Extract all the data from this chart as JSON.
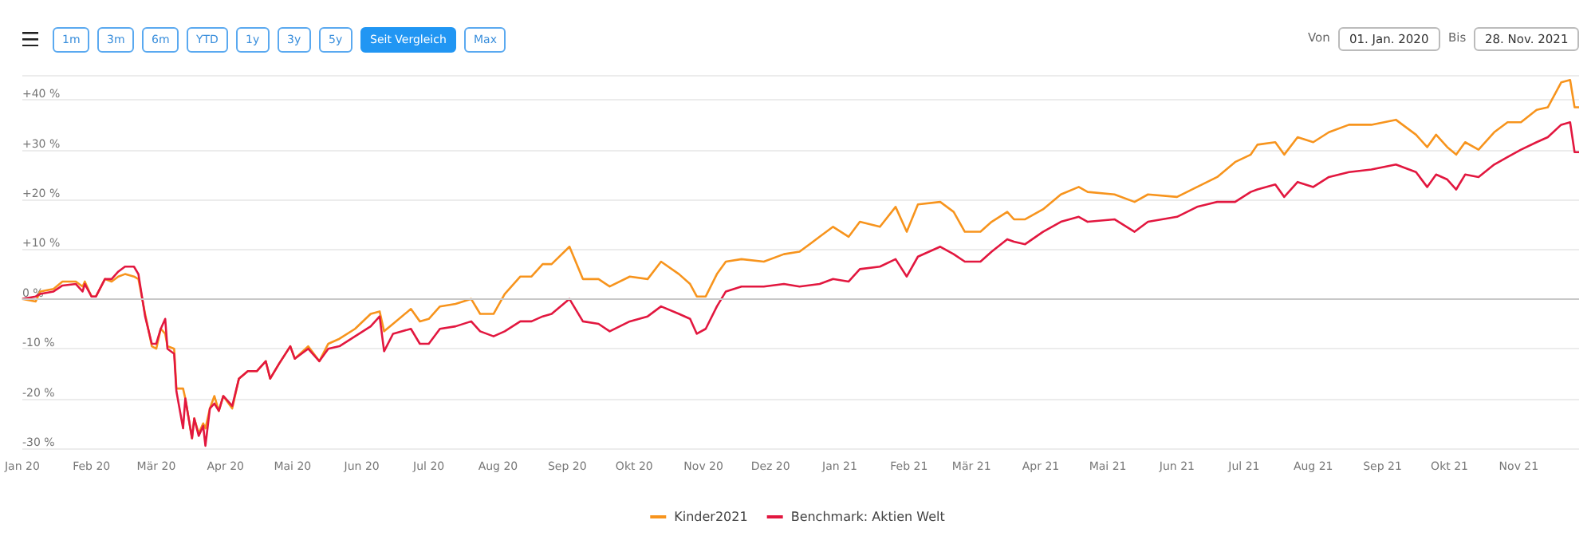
{
  "chart_data": {
    "type": "line",
    "annotations": [
      "1m",
      "3m",
      "6m",
      "YTD",
      "1y",
      "3y",
      "5y",
      "Seit Vergleich",
      "Max",
      "Von",
      "01. Jan. 2020",
      "Bis",
      "28. Nov. 2021"
    ],
    "x": [
      "2020-01-01",
      "2020-01-07",
      "2020-01-09",
      "2020-01-15",
      "2020-01-19",
      "2020-01-25",
      "2020-01-28",
      "2020-01-29",
      "2020-02-01",
      "2020-02-03",
      "2020-02-07",
      "2020-02-10",
      "2020-02-13",
      "2020-02-16",
      "2020-02-20",
      "2020-02-22",
      "2020-02-25",
      "2020-02-28",
      "2020-03-01",
      "2020-03-03",
      "2020-03-05",
      "2020-03-06",
      "2020-03-09",
      "2020-03-10",
      "2020-03-13",
      "2020-03-14",
      "2020-03-17",
      "2020-03-18",
      "2020-03-20",
      "2020-03-22",
      "2020-03-23",
      "2020-03-25",
      "2020-03-27",
      "2020-03-29",
      "2020-03-31",
      "2020-04-04",
      "2020-04-07",
      "2020-04-11",
      "2020-04-15",
      "2020-04-19",
      "2020-04-21",
      "2020-04-25",
      "2020-04-30",
      "2020-05-02",
      "2020-05-08",
      "2020-05-13",
      "2020-05-17",
      "2020-05-22",
      "2020-05-29",
      "2020-06-05",
      "2020-06-09",
      "2020-06-11",
      "2020-06-15",
      "2020-06-23",
      "2020-06-27",
      "2020-07-01",
      "2020-07-06",
      "2020-07-13",
      "2020-07-20",
      "2020-07-24",
      "2020-07-30",
      "2020-08-04",
      "2020-08-11",
      "2020-08-16",
      "2020-08-21",
      "2020-08-25",
      "2020-09-02",
      "2020-09-08",
      "2020-09-15",
      "2020-09-20",
      "2020-09-29",
      "2020-10-07",
      "2020-10-13",
      "2020-10-21",
      "2020-10-26",
      "2020-10-29",
      "2020-11-02",
      "2020-11-07",
      "2020-11-11",
      "2020-11-18",
      "2020-11-28",
      "2020-12-07",
      "2020-12-14",
      "2020-12-23",
      "2020-12-29",
      "2021-01-05",
      "2021-01-10",
      "2021-01-19",
      "2021-01-26",
      "2021-01-31",
      "2021-02-05",
      "2021-02-15",
      "2021-02-21",
      "2021-02-26",
      "2021-03-05",
      "2021-03-10",
      "2021-03-17",
      "2021-03-20",
      "2021-03-25",
      "2021-04-02",
      "2021-04-10",
      "2021-04-18",
      "2021-04-22",
      "2021-05-04",
      "2021-05-13",
      "2021-05-19",
      "2021-06-01",
      "2021-06-10",
      "2021-06-19",
      "2021-06-27",
      "2021-07-04",
      "2021-07-07",
      "2021-07-15",
      "2021-07-19",
      "2021-07-25",
      "2021-08-01",
      "2021-08-08",
      "2021-08-17",
      "2021-08-27",
      "2021-09-07",
      "2021-09-16",
      "2021-09-21",
      "2021-09-25",
      "2021-09-30",
      "2021-10-04",
      "2021-10-08",
      "2021-10-14",
      "2021-10-21",
      "2021-10-27",
      "2021-11-02",
      "2021-11-09",
      "2021-11-14",
      "2021-11-20",
      "2021-11-24",
      "2021-11-26",
      "2021-11-28"
    ],
    "series": [
      {
        "name": "Kinder2021",
        "color": "#f7941d",
        "values": [
          0,
          -0.5,
          1.5,
          2,
          3.5,
          3.5,
          2.5,
          3.5,
          0.5,
          0.5,
          4,
          3.5,
          4.5,
          5,
          4.5,
          4,
          -3,
          -9.5,
          -10,
          -6,
          -7,
          -9.5,
          -10,
          -18,
          -18,
          -20,
          -28,
          -24,
          -27,
          -25,
          -26,
          -22,
          -19.5,
          -22.5,
          -19.5,
          -22,
          -16,
          -14.5,
          -14.5,
          -12.5,
          -16,
          -13,
          -9.5,
          -12,
          -9.5,
          -12.5,
          -9,
          -8,
          -6,
          -3,
          -2.5,
          -6.5,
          -5,
          -2,
          -4.5,
          -4,
          -1.5,
          -1,
          0,
          -3,
          -3,
          1,
          4.5,
          4.5,
          7,
          7,
          10.5,
          4,
          4,
          2.5,
          4.5,
          4,
          7.5,
          5,
          3,
          0.5,
          0.5,
          5,
          7.5,
          8,
          7.5,
          9,
          9.5,
          12.5,
          14.5,
          12.5,
          15.5,
          14.5,
          18.5,
          13.5,
          19,
          19.5,
          17.5,
          13.5,
          13.5,
          15.5,
          17.5,
          16,
          16,
          18,
          21,
          22.5,
          21.5,
          21,
          19.5,
          21,
          20.5,
          22.5,
          24.5,
          27.5,
          29,
          31,
          31.5,
          29,
          32.5,
          31.5,
          33.5,
          35,
          35,
          36,
          33,
          30.5,
          33,
          30.5,
          29,
          31.5,
          30,
          33.5,
          35.5,
          35.5,
          38,
          38.5,
          43.5,
          44,
          38.5,
          38.5
        ]
      },
      {
        "name": "Benchmark: Aktien Welt",
        "color": "#e2173f",
        "values": [
          0,
          0.5,
          1,
          1.5,
          2.7,
          3,
          1.5,
          3,
          0.5,
          0.5,
          4,
          4,
          5.5,
          6.5,
          6.5,
          5,
          -3.5,
          -9,
          -9,
          -6,
          -4,
          -10,
          -11,
          -18.5,
          -26,
          -20,
          -28,
          -24,
          -27.5,
          -25.5,
          -29.5,
          -22,
          -21,
          -22.5,
          -19.5,
          -21.5,
          -16,
          -14.5,
          -14.5,
          -12.5,
          -16,
          -13,
          -9.5,
          -12,
          -10,
          -12.5,
          -10,
          -9.5,
          -7.5,
          -5.5,
          -3.5,
          -10.5,
          -7,
          -6,
          -9,
          -9,
          -6,
          -5.5,
          -4.5,
          -6.5,
          -7.5,
          -6.5,
          -4.5,
          -4.5,
          -3.5,
          -3,
          0,
          -4.5,
          -5,
          -6.5,
          -4.5,
          -3.5,
          -1.5,
          -3,
          -4,
          -7,
          -6,
          -1.5,
          1.5,
          2.5,
          2.5,
          3,
          2.5,
          3,
          4,
          3.5,
          6,
          6.5,
          8,
          4.5,
          8.5,
          10.5,
          9,
          7.5,
          7.5,
          9.5,
          12,
          11.5,
          11,
          13.5,
          15.5,
          16.5,
          15.5,
          16,
          13.5,
          15.5,
          16.5,
          18.5,
          19.5,
          19.5,
          21.5,
          22,
          23,
          20.5,
          23.5,
          22.5,
          24.5,
          25.5,
          26,
          27,
          25.5,
          22.5,
          25,
          24,
          22,
          25,
          24.5,
          27,
          28.5,
          30,
          31.5,
          32.5,
          35,
          35.5,
          29.5,
          29.5
        ]
      }
    ],
    "xlim": [
      "2020-01-01",
      "2021-11-28"
    ],
    "xticks": [
      {
        "value": "2020-01-01",
        "label": "Jan 20"
      },
      {
        "value": "2020-02-01",
        "label": "Feb 20"
      },
      {
        "value": "2020-03-01",
        "label": "Mär 20"
      },
      {
        "value": "2020-04-01",
        "label": "Apr 20"
      },
      {
        "value": "2020-05-01",
        "label": "Mai 20"
      },
      {
        "value": "2020-06-01",
        "label": "Jun 20"
      },
      {
        "value": "2020-07-01",
        "label": "Jul 20"
      },
      {
        "value": "2020-08-01",
        "label": "Aug 20"
      },
      {
        "value": "2020-09-01",
        "label": "Sep 20"
      },
      {
        "value": "2020-10-01",
        "label": "Okt 20"
      },
      {
        "value": "2020-11-01",
        "label": "Nov 20"
      },
      {
        "value": "2020-12-01",
        "label": "Dez 20"
      },
      {
        "value": "2021-01-01",
        "label": "Jan 21"
      },
      {
        "value": "2021-02-01",
        "label": "Feb 21"
      },
      {
        "value": "2021-03-01",
        "label": "Mär 21"
      },
      {
        "value": "2021-04-01",
        "label": "Apr 21"
      },
      {
        "value": "2021-05-01",
        "label": "Mai 21"
      },
      {
        "value": "2021-06-01",
        "label": "Jun 21"
      },
      {
        "value": "2021-07-01",
        "label": "Jul 21"
      },
      {
        "value": "2021-08-01",
        "label": "Aug 21"
      },
      {
        "value": "2021-09-01",
        "label": "Sep 21"
      },
      {
        "value": "2021-10-01",
        "label": "Okt 21"
      },
      {
        "value": "2021-11-01",
        "label": "Nov 21"
      }
    ],
    "ylim": [
      -30,
      45
    ],
    "yticks": [
      {
        "value": -30,
        "label": "-30 %"
      },
      {
        "value": -20,
        "label": "-20 %"
      },
      {
        "value": -10,
        "label": "-10 %"
      },
      {
        "value": 0,
        "label": "0 %"
      },
      {
        "value": 10,
        "label": "+10 %"
      },
      {
        "value": 20,
        "label": "+20 %"
      },
      {
        "value": 30,
        "label": "+30 %"
      },
      {
        "value": 40,
        "label": "+40 %"
      }
    ],
    "ref_lines": [
      {
        "axis": "y",
        "value": 0,
        "color": "#c8c8c8"
      }
    ],
    "grid": "y",
    "legend": "bottom",
    "marker": "none",
    "line_style": "solid"
  }
}
